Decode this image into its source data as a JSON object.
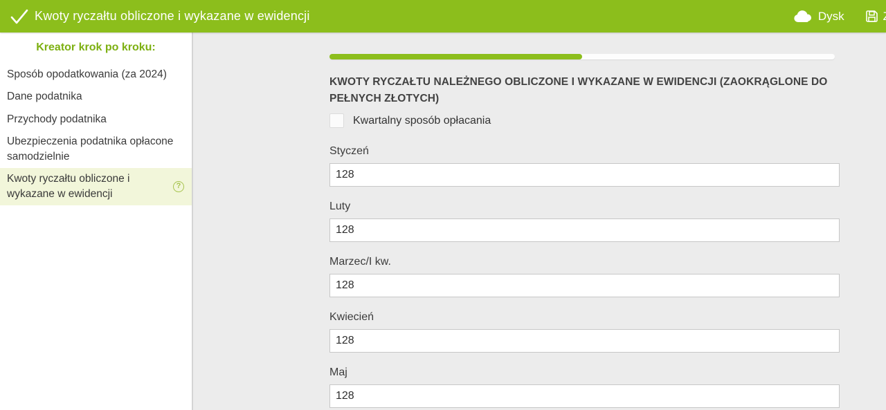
{
  "header": {
    "title": "Kwoty ryczałtu obliczone i wykazane w ewidencji",
    "disk_label": "Dysk",
    "save_label": "Z"
  },
  "sidebar": {
    "heading": "Kreator krok po kroku:",
    "items": [
      {
        "label": "Sposób opodatkowania (za 2024)",
        "active": false
      },
      {
        "label": "Dane podatnika",
        "active": false
      },
      {
        "label": "Przychody podatnika",
        "active": false
      },
      {
        "label": "Ubezpieczenia podatnika opłacone samodzielnie",
        "active": false
      },
      {
        "label": "Kwoty ryczałtu obliczone i wykazane w ewidencji",
        "active": true
      }
    ]
  },
  "main": {
    "progress_percent": 50,
    "heading": "KWOTY RYCZAŁTU NALEŻNEGO OBLICZONE I WYKAZANE W EWIDENCJI (ZAOKRĄGLONE DO PEŁNYCH ZŁOTYCH)",
    "checkbox": {
      "label": "Kwartalny sposób opłacania",
      "checked": false
    },
    "fields": [
      {
        "label": "Styczeń",
        "value": "128"
      },
      {
        "label": "Luty",
        "value": "128"
      },
      {
        "label": "Marzec/I kw.",
        "value": "128"
      },
      {
        "label": "Kwiecień",
        "value": "128"
      },
      {
        "label": "Maj",
        "value": "128"
      }
    ]
  },
  "colors": {
    "accent_green": "#8CBE1C",
    "sidebar_heading_green": "#7DB012",
    "active_item_bg": "#F2F6DA",
    "main_bg": "#ECECEC"
  }
}
